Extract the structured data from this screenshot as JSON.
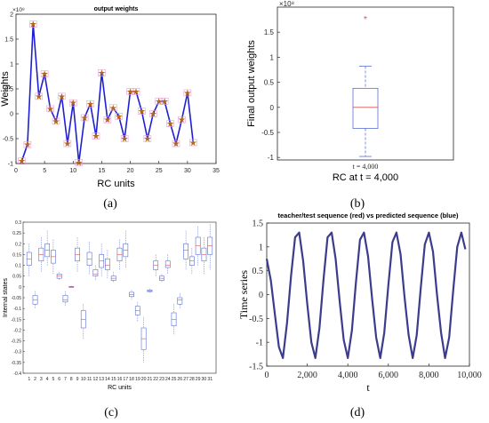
{
  "colors": {
    "axis": "#262626",
    "line_blue": "#1f1fd6",
    "marker_red": "#c0392b",
    "marker_star": "#b5651d",
    "box_blue": "#5b6fd6",
    "median_red": "#d9534f",
    "outlier_red": "#e03030",
    "seq_line": "#3c3c8c"
  },
  "captions": [
    "(a)",
    "(b)",
    "(c)",
    "(d)"
  ],
  "chart_data": [
    {
      "panel": "a",
      "type": "line",
      "title": "output weights",
      "xlabel": "RC units",
      "ylabel": "Weights",
      "exponent_label": "×10⁸",
      "xlim": [
        0,
        35
      ],
      "ylim": [
        -1,
        2
      ],
      "xticks": [
        0,
        5,
        10,
        15,
        20,
        25,
        30,
        35
      ],
      "yticks": [
        -1,
        -0.5,
        0,
        0.5,
        1,
        1.5,
        2
      ],
      "ytick_labels": [
        "-1",
        "-0.5",
        "0",
        "0.5",
        "1",
        "1.5",
        "2"
      ],
      "x": [
        1,
        2,
        3,
        4,
        5,
        6,
        7,
        8,
        9,
        10,
        11,
        12,
        13,
        14,
        15,
        16,
        17,
        18,
        19,
        20,
        21,
        22,
        23,
        24,
        25,
        26,
        27,
        28,
        29,
        30,
        31
      ],
      "values": [
        -0.95,
        -0.62,
        1.8,
        0.35,
        0.8,
        0.1,
        -0.15,
        0.35,
        -0.6,
        0.22,
        -0.98,
        -0.08,
        0.2,
        -0.45,
        0.82,
        -0.12,
        0.12,
        -0.05,
        -0.5,
        0.45,
        0.45,
        0.05,
        -0.5,
        0.0,
        0.25,
        0.25,
        -0.2,
        -0.6,
        -0.12,
        0.42,
        -0.58
      ]
    },
    {
      "panel": "b",
      "type": "box",
      "xlabel": "RC at t = 4,000",
      "category": "t = 4,000",
      "ylabel": "Final output weights",
      "exponent_label": "×10⁸",
      "ylim": [
        -1.05,
        2.0
      ],
      "yticks": [
        -1,
        -0.5,
        0,
        0.5,
        1,
        1.5
      ],
      "ytick_labels": [
        "-1",
        "-0.5",
        "0",
        "0.5",
        "1",
        "1.5"
      ],
      "box": {
        "min": -0.98,
        "q1": -0.42,
        "median": 0.0,
        "q3": 0.38,
        "max": 0.82,
        "outliers": [
          1.8
        ]
      }
    },
    {
      "panel": "c",
      "type": "box",
      "xlabel": "RC units",
      "ylabel": "Internal states",
      "ylim": [
        -0.4,
        0.3
      ],
      "yticks": [
        -0.4,
        -0.35,
        -0.3,
        -0.25,
        -0.2,
        -0.15,
        -0.1,
        -0.05,
        0,
        0.05,
        0.1,
        0.15,
        0.2,
        0.25,
        0.3
      ],
      "ytick_labels": [
        "-0.4",
        "-0.35",
        "-0.3",
        "-0.25",
        "-0.2",
        "-0.15",
        "-0.1",
        "-0.05",
        "0",
        "0.05",
        "0.1",
        "0.15",
        "0.2",
        "0.25",
        "0.3"
      ],
      "categories": [
        "1",
        "2",
        "3",
        "4",
        "5",
        "6",
        "7",
        "8",
        "9",
        "10",
        "11",
        "12",
        "13",
        "14",
        "15",
        "16",
        "17",
        "18",
        "19",
        "20",
        "21",
        "22",
        "23",
        "24",
        "25",
        "26",
        "27",
        "28",
        "29",
        "30",
        "31"
      ],
      "boxes": [
        {
          "min": 0.05,
          "q1": 0.1,
          "median": 0.13,
          "q3": 0.16,
          "max": 0.2
        },
        {
          "min": -0.1,
          "q1": -0.08,
          "median": -0.06,
          "q3": -0.04,
          "max": -0.02
        },
        {
          "min": 0.07,
          "q1": 0.12,
          "median": 0.15,
          "q3": 0.18,
          "max": 0.23
        },
        {
          "min": 0.1,
          "q1": 0.14,
          "median": 0.17,
          "q3": 0.2,
          "max": 0.26
        },
        {
          "min": 0.06,
          "q1": 0.11,
          "median": 0.14,
          "q3": 0.17,
          "max": 0.22
        },
        {
          "min": 0.03,
          "q1": 0.04,
          "median": 0.05,
          "q3": 0.06,
          "max": 0.07
        },
        {
          "min": -0.09,
          "q1": -0.07,
          "median": -0.06,
          "q3": -0.04,
          "max": -0.02
        },
        {
          "min": -0.005,
          "q1": -0.002,
          "median": 0.0,
          "q3": 0.002,
          "max": 0.005
        },
        {
          "min": 0.07,
          "q1": 0.12,
          "median": 0.15,
          "q3": 0.18,
          "max": 0.23
        },
        {
          "min": -0.24,
          "q1": -0.19,
          "median": -0.15,
          "q3": -0.11,
          "max": -0.08
        },
        {
          "min": 0.06,
          "q1": 0.1,
          "median": 0.13,
          "q3": 0.16,
          "max": 0.21
        },
        {
          "min": 0.03,
          "q1": 0.05,
          "median": 0.06,
          "q3": 0.08,
          "max": 0.1
        },
        {
          "min": 0.05,
          "q1": 0.09,
          "median": 0.12,
          "q3": 0.15,
          "max": 0.2
        },
        {
          "min": 0.04,
          "q1": 0.08,
          "median": 0.1,
          "q3": 0.13,
          "max": 0.17
        },
        {
          "min": 0.02,
          "q1": 0.03,
          "median": 0.04,
          "q3": 0.05,
          "max": 0.07
        },
        {
          "min": 0.08,
          "q1": 0.12,
          "median": 0.15,
          "q3": 0.18,
          "max": 0.22
        },
        {
          "min": 0.09,
          "q1": 0.14,
          "median": 0.17,
          "q3": 0.2,
          "max": 0.26
        },
        {
          "min": -0.06,
          "q1": -0.045,
          "median": -0.035,
          "q3": -0.025,
          "max": -0.015
        },
        {
          "min": -0.16,
          "q1": -0.13,
          "median": -0.11,
          "q3": -0.09,
          "max": -0.07
        },
        {
          "min": -0.35,
          "q1": -0.29,
          "median": -0.24,
          "q3": -0.19,
          "max": -0.14
        },
        {
          "min": -0.03,
          "q1": -0.022,
          "median": -0.018,
          "q3": -0.014,
          "max": -0.008
        },
        {
          "min": 0.05,
          "q1": 0.08,
          "median": 0.1,
          "q3": 0.12,
          "max": 0.15
        },
        {
          "min": 0.02,
          "q1": 0.03,
          "median": 0.04,
          "q3": 0.05,
          "max": 0.06
        },
        {
          "min": 0.06,
          "q1": 0.09,
          "median": 0.1,
          "q3": 0.12,
          "max": 0.15
        },
        {
          "min": -0.22,
          "q1": -0.18,
          "median": -0.15,
          "q3": -0.12,
          "max": -0.08
        },
        {
          "min": -0.1,
          "q1": -0.08,
          "median": -0.06,
          "q3": -0.05,
          "max": -0.03
        },
        {
          "min": 0.08,
          "q1": 0.13,
          "median": 0.17,
          "q3": 0.2,
          "max": 0.26
        },
        {
          "min": 0.06,
          "q1": 0.1,
          "median": 0.12,
          "q3": 0.14,
          "max": 0.18
        },
        {
          "min": 0.1,
          "q1": 0.15,
          "median": 0.19,
          "q3": 0.23,
          "max": 0.28
        },
        {
          "min": 0.06,
          "q1": 0.12,
          "median": 0.15,
          "q3": 0.18,
          "max": 0.23
        },
        {
          "min": 0.08,
          "q1": 0.15,
          "median": 0.19,
          "q3": 0.23,
          "max": 0.29
        }
      ]
    },
    {
      "panel": "d",
      "type": "line",
      "title": "teacher/test sequence (red) vs predicted sequence (blue)",
      "xlabel": "t",
      "ylabel": "Time series",
      "xlim": [
        0,
        10000
      ],
      "ylim": [
        -1.5,
        1.5
      ],
      "xticks": [
        0,
        2000,
        4000,
        6000,
        8000,
        10000
      ],
      "xtick_labels": [
        "0",
        "2,000",
        "4,000",
        "6,000",
        "8,000",
        "10,000"
      ],
      "yticks": [
        -1.5,
        -1,
        -0.5,
        0,
        0.5,
        1,
        1.5
      ],
      "ytick_labels": [
        "-1.5",
        "-1",
        "-0.5",
        "0",
        "0.5",
        "1",
        "1.5"
      ],
      "series": [
        {
          "x": [
            0,
            200,
            400,
            600,
            800,
            1000,
            1200,
            1400,
            1600,
            1800,
            2000,
            2200,
            2400,
            2600,
            2800,
            3000,
            3200,
            3400,
            3600,
            3800,
            4000,
            4200,
            4400,
            4600,
            4800,
            5000,
            5200,
            5400,
            5600,
            5800,
            6000,
            6200,
            6400,
            6600,
            6800,
            7000,
            7200,
            7400,
            7600,
            7800,
            8000,
            8200,
            8400,
            8600,
            8800,
            9000,
            9200,
            9400,
            9600,
            9800
          ],
          "y": [
            0.75,
            0.3,
            -0.4,
            -1.1,
            -1.33,
            -0.6,
            0.4,
            1.2,
            1.3,
            0.7,
            -0.2,
            -1.0,
            -1.33,
            -0.7,
            0.3,
            1.2,
            1.3,
            0.75,
            -0.15,
            -0.95,
            -1.33,
            -0.75,
            0.25,
            1.15,
            1.3,
            0.8,
            -0.1,
            -0.9,
            -1.33,
            -0.8,
            0.2,
            1.1,
            1.3,
            0.85,
            -0.05,
            -0.85,
            -1.33,
            -0.85,
            0.15,
            1.05,
            1.3,
            0.9,
            0.0,
            -0.8,
            -1.33,
            -0.9,
            0.1,
            1.0,
            1.3,
            0.95
          ]
        }
      ]
    }
  ]
}
